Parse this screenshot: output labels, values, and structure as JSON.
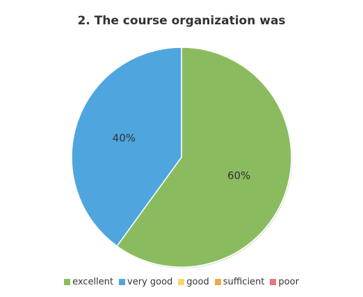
{
  "chart_data": {
    "type": "pie",
    "title": "2. The course organization was",
    "categories": [
      "excellent",
      "very good",
      "good",
      "sufficient",
      "poor"
    ],
    "values": [
      60,
      40,
      0,
      0,
      0
    ],
    "data_labels": [
      "60%",
      "40%",
      "",
      "",
      ""
    ],
    "colors": [
      "#8BBB5F",
      "#4FA6DF",
      "#F9D56B",
      "#F4A74E",
      "#E07A7E"
    ],
    "legend_position": "bottom"
  }
}
